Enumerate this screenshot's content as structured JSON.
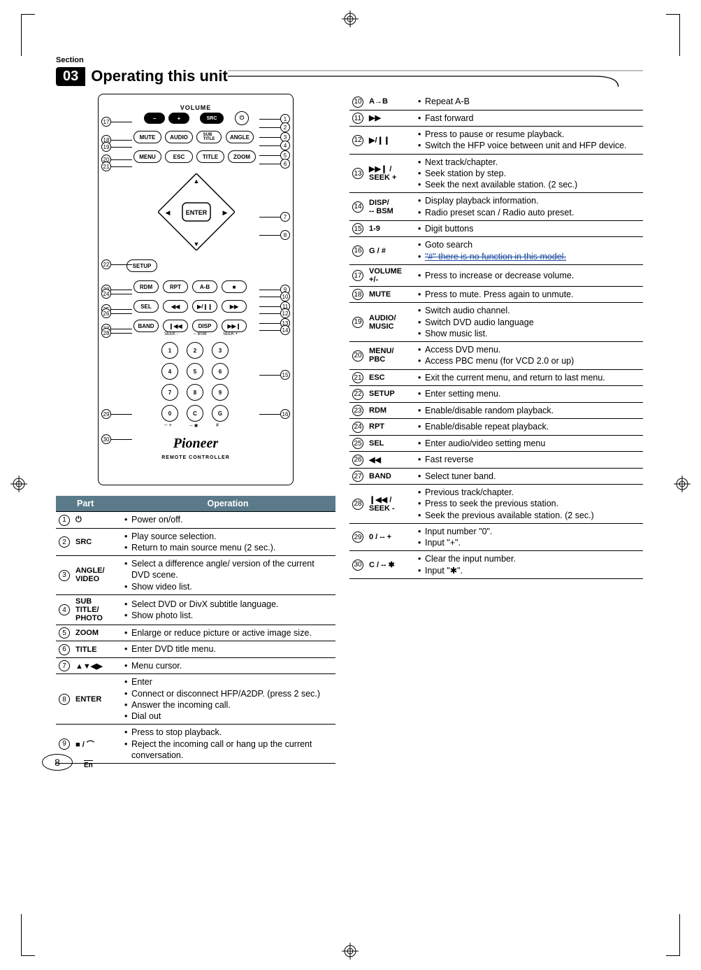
{
  "section_label": "Section",
  "section_number": "03",
  "header_title": "Operating this unit",
  "page_number": "8",
  "lang": "En",
  "remote": {
    "volume_label": "VOLUME",
    "brand": "Pioneer",
    "sub_brand": "REMOTE CONTROLLER",
    "buttons": {
      "src": "SRC",
      "mute": "MUTE",
      "audio": "AUDIO",
      "subtitle": "SUB\nTITLE",
      "angle": "ANGLE",
      "menu": "MENU",
      "esc": "ESC",
      "title": "TITLE",
      "zoom": "ZOOM",
      "enter": "ENTER",
      "setup": "SETUP",
      "rdm": "RDM",
      "rpt": "RPT",
      "ab": "A-B",
      "sel": "SEL",
      "disp": "DISP",
      "band": "BAND",
      "music": "MUSIC",
      "video": "VIDEO",
      "photo": "PHOTO",
      "pbc": "PBC",
      "seek_minus": "SEEK -",
      "seek_plus": "SEEK +",
      "bsm": "-- BSM"
    },
    "callouts_left": [
      "17",
      "18",
      "19",
      "20",
      "21",
      "22",
      "23",
      "24",
      "25",
      "26",
      "27",
      "28",
      "29",
      "30"
    ],
    "callouts_right": [
      "1",
      "2",
      "3",
      "4",
      "5",
      "6",
      "7",
      "8",
      "9",
      "10",
      "11",
      "12",
      "13",
      "14",
      "15",
      "16"
    ]
  },
  "table_headers": {
    "part": "Part",
    "operation": "Operation"
  },
  "rows_left": [
    {
      "n": "1",
      "part": "⏻",
      "ops": [
        "Power on/off."
      ]
    },
    {
      "n": "2",
      "part": "SRC",
      "ops": [
        "Play source selection.",
        "Return to main source menu (2 sec.)."
      ]
    },
    {
      "n": "3",
      "part": "ANGLE/\nVIDEO",
      "ops": [
        "Select a difference angle/ version of the current DVD scene.",
        "Show video list."
      ]
    },
    {
      "n": "4",
      "part": "SUB\nTITLE/\nPHOTO",
      "ops": [
        "Select DVD or DivX subtitle language.",
        "Show photo list."
      ]
    },
    {
      "n": "5",
      "part": "ZOOM",
      "ops": [
        "Enlarge or reduce picture or active image size."
      ]
    },
    {
      "n": "6",
      "part": "TITLE",
      "ops": [
        "Enter DVD title menu."
      ]
    },
    {
      "n": "7",
      "part": "▲▼◀▶",
      "ops": [
        "Menu cursor."
      ]
    },
    {
      "n": "8",
      "part": "ENTER",
      "ops": [
        "Enter",
        "Connect or disconnect HFP/A2DP. (press  2 sec.)",
        "Answer the incoming call.",
        "Dial out"
      ]
    },
    {
      "n": "9",
      "part": "■ / ⌒",
      "ops": [
        "Press to stop playback.",
        "Reject the incoming call or hang up the current conversation."
      ]
    }
  ],
  "rows_right": [
    {
      "n": "10",
      "part": "A→B",
      "ops": [
        "Repeat A-B"
      ]
    },
    {
      "n": "11",
      "part": "▶▶",
      "ops": [
        "Fast forward"
      ]
    },
    {
      "n": "12",
      "part": "▶/❙❙",
      "ops": [
        "Press to pause or resume playback.",
        "Switch the HFP voice between unit and HFP device."
      ]
    },
    {
      "n": "13",
      "part": "▶▶❙ /\nSEEK +",
      "ops": [
        "Next track/chapter.",
        "Seek station by step.",
        "Seek the next available station. (2 sec.)"
      ]
    },
    {
      "n": "14",
      "part": "DISP/\n-- BSM",
      "ops": [
        "Display playback information.",
        "Radio preset scan / Radio auto preset."
      ]
    },
    {
      "n": "15",
      "part": "1-9",
      "ops": [
        "Digit buttons"
      ]
    },
    {
      "n": "16",
      "part": "G / #",
      "ops": [
        "Goto search",
        "__STRIKE__\"#\" there is no function in this model."
      ]
    },
    {
      "n": "17",
      "part": "VOLUME\n+/-",
      "ops": [
        "Press to increase or decrease volume."
      ]
    },
    {
      "n": "18",
      "part": "MUTE",
      "ops": [
        "Press to mute. Press again to unmute."
      ]
    },
    {
      "n": "19",
      "part": "AUDIO/\nMUSIC",
      "ops": [
        "Switch audio channel.",
        "Switch DVD audio language",
        "Show music list."
      ]
    },
    {
      "n": "20",
      "part": "MENU/\nPBC",
      "ops": [
        "Access DVD menu.",
        "Access PBC menu (for VCD 2.0 or up)"
      ]
    },
    {
      "n": "21",
      "part": "ESC",
      "ops": [
        "Exit the current menu, and return to last menu."
      ]
    },
    {
      "n": "22",
      "part": "SETUP",
      "ops": [
        "Enter setting menu."
      ]
    },
    {
      "n": "23",
      "part": "RDM",
      "ops": [
        "Enable/disable random playback."
      ]
    },
    {
      "n": "24",
      "part": "RPT",
      "ops": [
        "Enable/disable repeat playback."
      ]
    },
    {
      "n": "25",
      "part": "SEL",
      "ops": [
        "Enter audio/video setting menu"
      ]
    },
    {
      "n": "26",
      "part": "◀◀",
      "ops": [
        "Fast reverse"
      ]
    },
    {
      "n": "27",
      "part": "BAND",
      "ops": [
        "Select tuner band."
      ]
    },
    {
      "n": "28",
      "part": "❙◀◀ /\nSEEK -",
      "ops": [
        "Previous track/chapter.",
        "Press to seek the previous station.",
        "Seek the previous available station. (2 sec.)"
      ]
    },
    {
      "n": "29",
      "part": "0 / -- +",
      "ops": [
        "Input number \"0\".",
        "Input \"+\"."
      ]
    },
    {
      "n": "30",
      "part": "C / -- ✱",
      "ops": [
        "Clear the input number.",
        "Input \"✱\"."
      ]
    }
  ]
}
